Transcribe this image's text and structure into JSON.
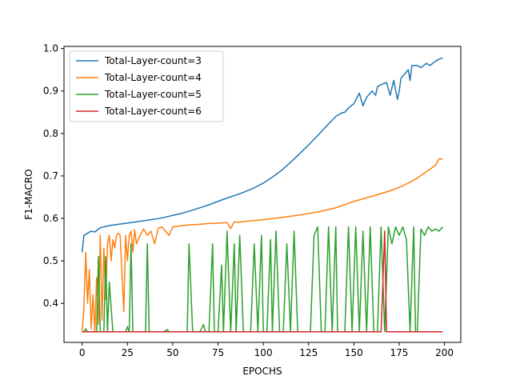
{
  "chart_data": {
    "type": "line",
    "title": "",
    "xlabel": "EPOCHS",
    "ylabel": "F1-MACRO",
    "xlim": [
      -10,
      209
    ],
    "ylim": [
      0.308,
      1.005
    ],
    "xticks": [
      0,
      25,
      50,
      75,
      100,
      125,
      150,
      175,
      200
    ],
    "yticks": [
      0.4,
      0.5,
      0.6,
      0.7,
      0.8,
      0.9,
      1.0
    ],
    "grid": false,
    "legend": "upper-left",
    "series": [
      {
        "name": "Total-Layer-count=3",
        "color": "#1f77b4",
        "x": [
          0,
          1,
          3,
          5,
          7,
          10,
          15,
          20,
          25,
          30,
          35,
          40,
          45,
          50,
          55,
          60,
          65,
          70,
          75,
          80,
          85,
          90,
          95,
          100,
          105,
          110,
          115,
          120,
          125,
          130,
          135,
          140,
          143,
          145,
          147,
          150,
          153,
          155,
          157,
          160,
          162,
          163,
          165,
          168,
          170,
          172,
          174,
          175,
          176,
          178,
          180,
          181,
          182,
          185,
          187,
          190,
          192,
          195,
          197,
          199
        ],
        "values": [
          0.52,
          0.56,
          0.565,
          0.57,
          0.568,
          0.578,
          0.583,
          0.586,
          0.589,
          0.592,
          0.595,
          0.598,
          0.602,
          0.607,
          0.612,
          0.618,
          0.625,
          0.632,
          0.64,
          0.648,
          0.655,
          0.663,
          0.672,
          0.683,
          0.697,
          0.713,
          0.732,
          0.752,
          0.773,
          0.795,
          0.818,
          0.84,
          0.848,
          0.85,
          0.86,
          0.87,
          0.895,
          0.865,
          0.885,
          0.9,
          0.89,
          0.91,
          0.915,
          0.92,
          0.89,
          0.925,
          0.88,
          0.9,
          0.93,
          0.94,
          0.95,
          0.925,
          0.96,
          0.96,
          0.955,
          0.965,
          0.96,
          0.97,
          0.975,
          0.978
        ]
      },
      {
        "name": "Total-Layer-count=4",
        "color": "#ff7f0e",
        "x": [
          0,
          1,
          2,
          3,
          4,
          5,
          6,
          7,
          8,
          9,
          10,
          11,
          12,
          13,
          14,
          15,
          16,
          17,
          18,
          19,
          20,
          21,
          22,
          23,
          24,
          25,
          26,
          27,
          28,
          29,
          30,
          32,
          34,
          36,
          38,
          40,
          42,
          44,
          46,
          48,
          50,
          55,
          60,
          65,
          70,
          75,
          80,
          82,
          84,
          86,
          90,
          100,
          110,
          120,
          130,
          140,
          150,
          160,
          170,
          175,
          180,
          185,
          190,
          195,
          197,
          199
        ],
        "values": [
          0.333,
          0.39,
          0.52,
          0.4,
          0.48,
          0.34,
          0.42,
          0.333,
          0.46,
          0.35,
          0.56,
          0.36,
          0.53,
          0.41,
          0.54,
          0.56,
          0.5,
          0.55,
          0.53,
          0.56,
          0.565,
          0.56,
          0.47,
          0.38,
          0.56,
          0.5,
          0.56,
          0.57,
          0.52,
          0.573,
          0.54,
          0.56,
          0.575,
          0.56,
          0.57,
          0.54,
          0.577,
          0.58,
          0.57,
          0.56,
          0.58,
          0.583,
          0.585,
          0.586,
          0.588,
          0.589,
          0.59,
          0.576,
          0.592,
          0.591,
          0.593,
          0.597,
          0.602,
          0.608,
          0.615,
          0.625,
          0.64,
          0.652,
          0.665,
          0.673,
          0.683,
          0.695,
          0.71,
          0.725,
          0.74,
          0.74
        ]
      },
      {
        "name": "Total-Layer-count=5",
        "color": "#2ca02c",
        "x": [
          0,
          1,
          2,
          3,
          5,
          7,
          8,
          9,
          10,
          11,
          12,
          13,
          14,
          15,
          17,
          20,
          22,
          24,
          25,
          26,
          27,
          28,
          30,
          33,
          35,
          36,
          37,
          40,
          45,
          47,
          48,
          50,
          52,
          55,
          57,
          58,
          59,
          61,
          65,
          67,
          68,
          70,
          72,
          73,
          75,
          77,
          78,
          80,
          82,
          84,
          85,
          87,
          89,
          91,
          93,
          95,
          97,
          99,
          100,
          102,
          104,
          105,
          107,
          109,
          111,
          113,
          115,
          117,
          119,
          121,
          122,
          124,
          126,
          128,
          130,
          132,
          134,
          136,
          138,
          140,
          141,
          143,
          145,
          147,
          149,
          151,
          153,
          155,
          157,
          159,
          161,
          163,
          165,
          167,
          169,
          171,
          173,
          175,
          177,
          179,
          181,
          183,
          184,
          185,
          187,
          189,
          191,
          193,
          195,
          197,
          199
        ],
        "values": [
          0.333,
          0.333,
          0.34,
          0.333,
          0.333,
          0.333,
          0.333,
          0.51,
          0.333,
          0.333,
          0.333,
          0.51,
          0.333,
          0.45,
          0.333,
          0.333,
          0.333,
          0.333,
          0.345,
          0.333,
          0.54,
          0.333,
          0.333,
          0.333,
          0.333,
          0.54,
          0.333,
          0.333,
          0.333,
          0.338,
          0.333,
          0.333,
          0.333,
          0.333,
          0.333,
          0.333,
          0.54,
          0.333,
          0.333,
          0.35,
          0.333,
          0.333,
          0.54,
          0.333,
          0.333,
          0.49,
          0.333,
          0.57,
          0.333,
          0.54,
          0.333,
          0.56,
          0.333,
          0.333,
          0.333,
          0.54,
          0.333,
          0.56,
          0.333,
          0.333,
          0.55,
          0.333,
          0.57,
          0.333,
          0.333,
          0.54,
          0.333,
          0.57,
          0.333,
          0.333,
          0.333,
          0.333,
          0.333,
          0.56,
          0.58,
          0.333,
          0.333,
          0.58,
          0.333,
          0.58,
          0.333,
          0.333,
          0.333,
          0.58,
          0.333,
          0.58,
          0.333,
          0.57,
          0.333,
          0.58,
          0.333,
          0.333,
          0.58,
          0.333,
          0.58,
          0.54,
          0.58,
          0.56,
          0.58,
          0.55,
          0.333,
          0.58,
          0.333,
          0.333,
          0.575,
          0.56,
          0.58,
          0.57,
          0.575,
          0.57,
          0.58
        ]
      },
      {
        "name": "Total-Layer-count=6",
        "color": "#d62728",
        "x": [
          0,
          50,
          100,
          150,
          165,
          166,
          167,
          168,
          170,
          180,
          190,
          199
        ],
        "values": [
          0.333,
          0.333,
          0.333,
          0.333,
          0.333,
          0.45,
          0.57,
          0.333,
          0.333,
          0.333,
          0.333,
          0.333
        ]
      }
    ]
  }
}
